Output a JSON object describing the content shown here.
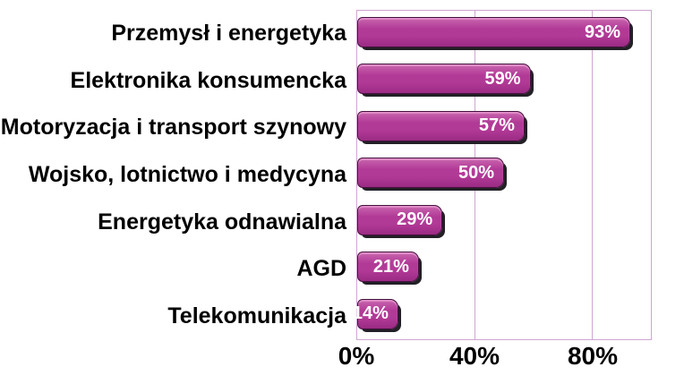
{
  "chart_data": {
    "type": "bar",
    "orientation": "horizontal",
    "title": "",
    "xlabel": "",
    "ylabel": "",
    "categories": [
      "Przemysł i energetyka",
      "Elektronika konsumencka",
      "Motoryzacja i transport szynowy",
      "Wojsko, lotnictwo i medycyna",
      "Energetyka odnawialna",
      "AGD",
      "Telekomunikacja"
    ],
    "values": [
      93,
      59,
      57,
      50,
      29,
      21,
      14
    ],
    "value_labels": [
      "93%",
      "59%",
      "57%",
      "50%",
      "29%",
      "21%",
      "14%"
    ],
    "xlim": [
      0,
      100
    ],
    "x_ticks": [
      {
        "value": 0,
        "label": "0%"
      },
      {
        "value": 40,
        "label": "40%"
      },
      {
        "value": 80,
        "label": "80%"
      }
    ],
    "gridline_values": [
      40,
      80
    ],
    "grid": "vertical",
    "legend": "none",
    "colors": {
      "background": "#ffffff",
      "bar_top": "#c966ae",
      "bar_mid": "#b23a97",
      "bar_bottom": "#9a2b83",
      "bar_border": "#45113f",
      "bar_shadow": "#232026",
      "value_text": "#ffffff",
      "grid": "#cfa6d2",
      "category_text": "#000000",
      "tick_text": "#000000"
    }
  }
}
